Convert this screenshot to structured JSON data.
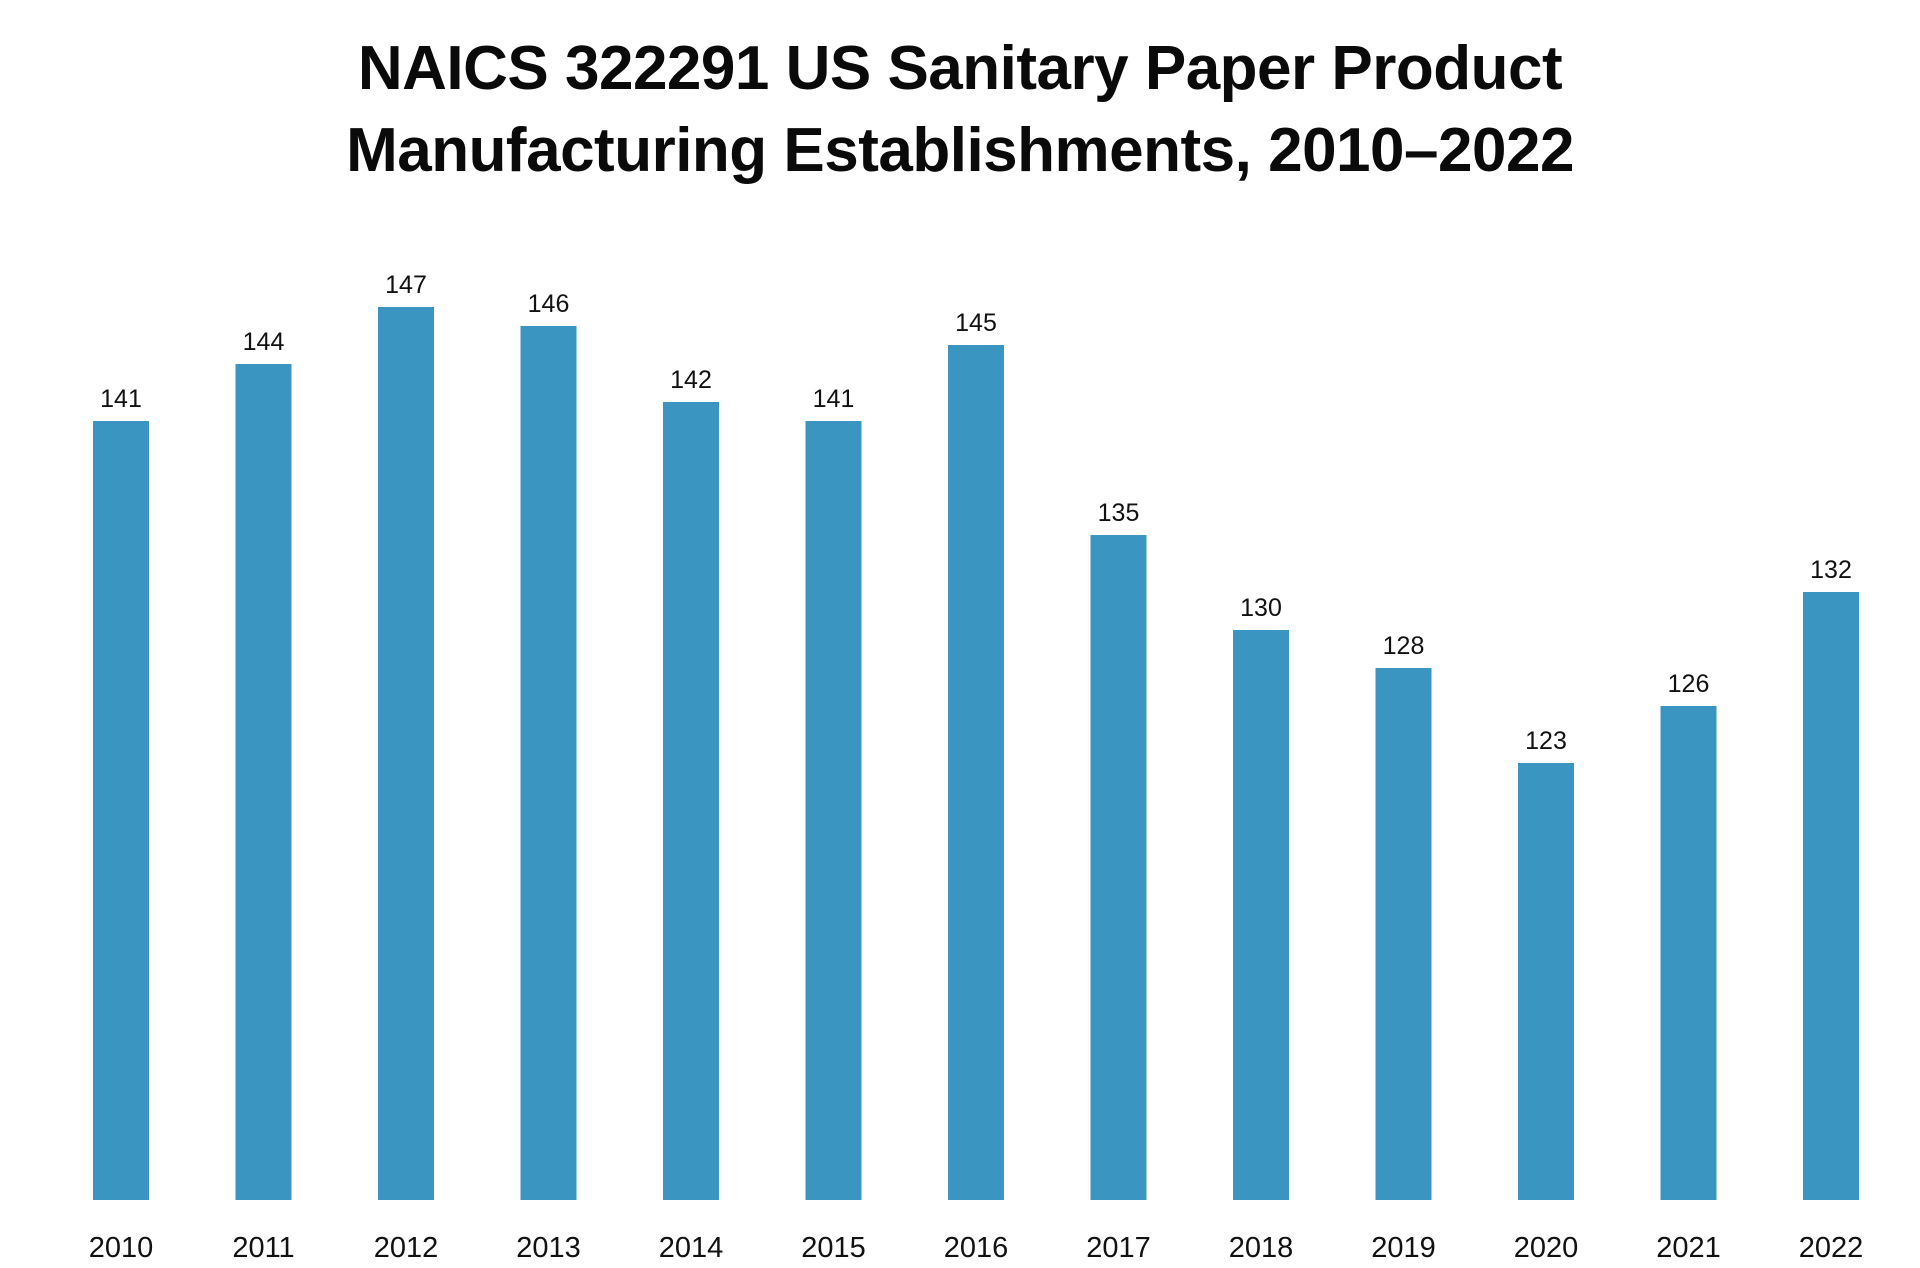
{
  "chart_data": {
    "type": "bar",
    "title": "NAICS 322291 US Sanitary Paper Product Manufacturing Establishments, 2010–2022",
    "title_lines": [
      "NAICS 322291 US Sanitary Paper Product",
      "Manufacturing Establishments, 2010–2022"
    ],
    "xlabel": "",
    "ylabel": "",
    "categories": [
      "2010",
      "2011",
      "2012",
      "2013",
      "2014",
      "2015",
      "2016",
      "2017",
      "2018",
      "2019",
      "2020",
      "2021",
      "2022"
    ],
    "values": [
      141,
      144,
      147,
      146,
      142,
      141,
      145,
      135,
      130,
      128,
      123,
      126,
      132
    ],
    "ylim": [
      100,
      147
    ],
    "grid": false,
    "data_labels": true,
    "bar_color": "#3a96c0"
  }
}
